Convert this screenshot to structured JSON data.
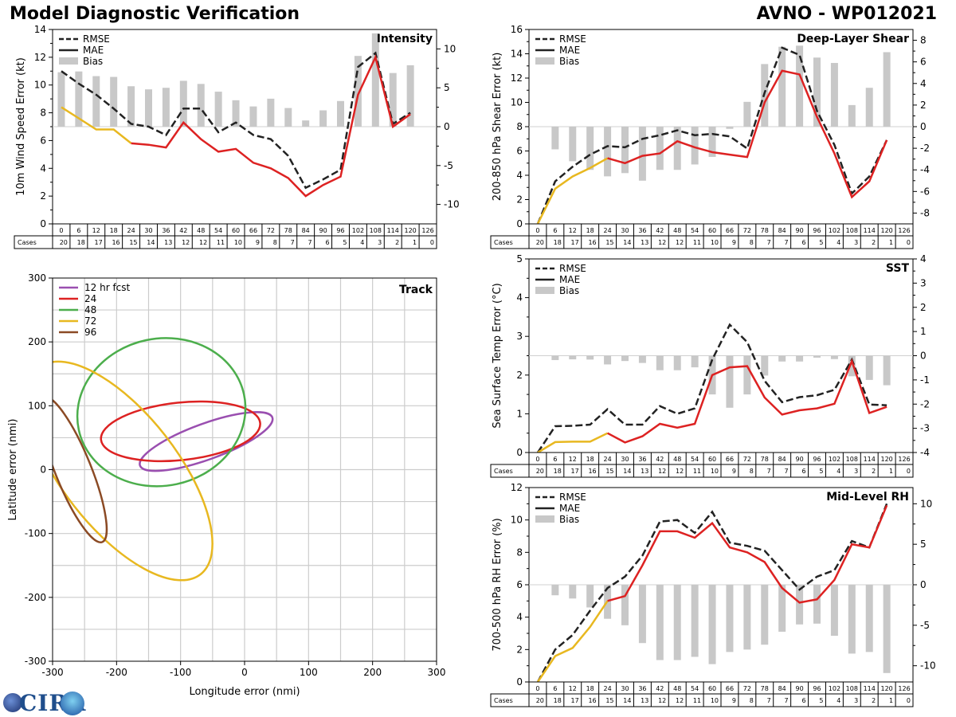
{
  "header": {
    "title": "Model Diagnostic Verification",
    "model": "AVNO - WP012021"
  },
  "logo": {
    "text": "CIRA"
  },
  "colors": {
    "rmse": "#222222",
    "mae_early": "#e8b820",
    "mae_late": "#dd2222",
    "bias": "#c8c8c8",
    "grid": "#cccccc",
    "zero": "#d0d0d0",
    "track": [
      "#9a4fb0",
      "#dd2222",
      "#4cae4c",
      "#e8b820",
      "#8b4a24"
    ]
  },
  "chart_data": [
    {
      "id": "intensity",
      "type": "line",
      "title": "Intensity",
      "ylabel": "10m Wind Speed Error (kt)",
      "x": [
        0,
        6,
        12,
        18,
        24,
        30,
        36,
        42,
        48,
        54,
        60,
        66,
        72,
        78,
        84,
        90,
        96,
        102,
        108,
        114,
        120,
        126
      ],
      "cases_label": "Cases",
      "cases": [
        20,
        18,
        17,
        16,
        15,
        14,
        13,
        12,
        12,
        11,
        10,
        9,
        8,
        7,
        7,
        6,
        5,
        4,
        3,
        2,
        1,
        0
      ],
      "ylim": [
        0,
        14
      ],
      "yticks": [
        0,
        2,
        4,
        6,
        8,
        10,
        12,
        14
      ],
      "y2lim": [
        -12.5,
        12.5
      ],
      "y2ticks": [
        -10,
        -5,
        0,
        5,
        10
      ],
      "legend": [
        "RMSE",
        "MAE",
        "Bias"
      ],
      "rmse": [
        11.0,
        10.1,
        9.3,
        8.3,
        7.2,
        7.0,
        6.4,
        8.3,
        8.3,
        6.6,
        7.3,
        6.4,
        6.1,
        4.9,
        2.6,
        3.2,
        3.9,
        11.3,
        12.3,
        7.2,
        8.0,
        null
      ],
      "mae": [
        8.4,
        7.6,
        6.8,
        6.8,
        5.8,
        5.7,
        5.5,
        7.3,
        6.1,
        5.2,
        5.4,
        4.4,
        4.0,
        3.3,
        2.0,
        2.8,
        3.4,
        9.3,
        12.0,
        7.0,
        7.9,
        null
      ],
      "mae_early_until": 24,
      "bias": [
        7.0,
        7.1,
        6.5,
        6.4,
        5.2,
        4.8,
        5.0,
        5.9,
        5.5,
        4.5,
        3.4,
        2.6,
        3.6,
        2.4,
        0.8,
        2.1,
        3.3,
        9.1,
        12.0,
        6.9,
        7.9,
        null
      ]
    },
    {
      "id": "shear",
      "type": "line",
      "title": "Deep-Layer Shear",
      "ylabel": "200-850 hPa Shear Error (kt)",
      "x": [
        0,
        6,
        12,
        18,
        24,
        30,
        36,
        42,
        48,
        54,
        60,
        66,
        72,
        78,
        84,
        90,
        96,
        102,
        108,
        114,
        120,
        126
      ],
      "cases_label": "Cases",
      "cases": [
        20,
        18,
        17,
        16,
        15,
        14,
        13,
        12,
        12,
        11,
        10,
        9,
        8,
        7,
        7,
        6,
        5,
        4,
        3,
        2,
        1,
        0
      ],
      "ylim": [
        0,
        16
      ],
      "yticks": [
        0,
        2,
        4,
        6,
        8,
        10,
        12,
        14,
        16
      ],
      "y2lim": [
        -9,
        9
      ],
      "y2ticks": [
        -8,
        -6,
        -4,
        -2,
        0,
        2,
        4,
        6,
        8
      ],
      "legend": [
        "RMSE",
        "MAE",
        "Bias"
      ],
      "rmse": [
        0.0,
        3.5,
        4.7,
        5.7,
        6.4,
        6.3,
        7.0,
        7.3,
        7.7,
        7.3,
        7.4,
        7.2,
        6.2,
        10.8,
        14.5,
        13.9,
        9.3,
        6.5,
        2.5,
        3.9,
        6.9,
        null
      ],
      "mae": [
        0.0,
        2.9,
        3.9,
        4.6,
        5.4,
        5.0,
        5.6,
        5.8,
        6.8,
        6.3,
        5.9,
        5.7,
        5.5,
        10.0,
        12.6,
        12.3,
        8.8,
        5.8,
        2.2,
        3.5,
        6.9,
        null
      ],
      "mae_early_until": 24,
      "bias": [
        0.0,
        -2.1,
        -3.2,
        -4.0,
        -4.6,
        -4.3,
        -5.0,
        -4.0,
        -4.0,
        -3.5,
        -2.8,
        -0.2,
        2.3,
        5.8,
        7.4,
        7.5,
        6.4,
        5.9,
        2.0,
        3.6,
        6.9,
        null
      ]
    },
    {
      "id": "sst",
      "type": "line",
      "title": "SST",
      "ylabel": "Sea Surface Temp Error (°C)",
      "x": [
        0,
        6,
        12,
        18,
        24,
        30,
        36,
        42,
        48,
        54,
        60,
        66,
        72,
        78,
        84,
        90,
        96,
        102,
        108,
        114,
        120,
        126
      ],
      "cases_label": "Cases",
      "cases": [
        20,
        18,
        17,
        16,
        15,
        14,
        13,
        12,
        12,
        11,
        10,
        9,
        8,
        7,
        7,
        6,
        5,
        4,
        3,
        2,
        1,
        0
      ],
      "ylim": [
        0,
        5
      ],
      "yticks": [
        0,
        1,
        2,
        3,
        4,
        5
      ],
      "y2lim": [
        -4,
        4
      ],
      "y2ticks": [
        -4,
        -3,
        -2,
        -1,
        0,
        1,
        2,
        3,
        4
      ],
      "legend": [
        "RMSE",
        "MAE",
        "Bias"
      ],
      "rmse": [
        0.0,
        0.68,
        0.69,
        0.72,
        1.12,
        0.72,
        0.72,
        1.2,
        1.0,
        1.14,
        2.4,
        3.3,
        2.85,
        1.85,
        1.3,
        1.43,
        1.48,
        1.62,
        2.4,
        1.24,
        1.22,
        null
      ],
      "mae": [
        0.0,
        0.27,
        0.28,
        0.28,
        0.5,
        0.26,
        0.42,
        0.74,
        0.64,
        0.74,
        2.0,
        2.2,
        2.23,
        1.42,
        0.98,
        1.09,
        1.14,
        1.26,
        2.36,
        1.02,
        1.18,
        null
      ],
      "mae_early_until": 24,
      "bias": [
        0.0,
        -0.18,
        -0.15,
        -0.16,
        -0.36,
        -0.22,
        -0.3,
        -0.6,
        -0.6,
        -0.48,
        -1.6,
        -2.15,
        -1.6,
        -0.82,
        -0.24,
        -0.24,
        -0.08,
        -0.14,
        -0.85,
        -1.0,
        -1.22,
        null
      ]
    },
    {
      "id": "rh",
      "type": "line",
      "title": "Mid-Level RH",
      "ylabel": "700-500 hPa RH Error (%)",
      "x": [
        0,
        6,
        12,
        18,
        24,
        30,
        36,
        42,
        48,
        54,
        60,
        66,
        72,
        78,
        84,
        90,
        96,
        102,
        108,
        114,
        120,
        126
      ],
      "cases_label": "Cases",
      "cases": [
        20,
        18,
        17,
        16,
        15,
        14,
        13,
        12,
        12,
        11,
        10,
        9,
        8,
        7,
        7,
        6,
        5,
        4,
        3,
        2,
        1,
        0
      ],
      "ylim": [
        0,
        12
      ],
      "yticks": [
        0,
        2,
        4,
        6,
        8,
        10,
        12
      ],
      "y2lim": [
        -12,
        12
      ],
      "y2ticks": [
        -10,
        -5,
        0,
        5,
        10
      ],
      "legend": [
        "RMSE",
        "MAE",
        "Bias"
      ],
      "rmse": [
        0.0,
        2.0,
        2.9,
        4.4,
        5.8,
        6.5,
        7.8,
        9.9,
        10.0,
        9.2,
        10.5,
        8.6,
        8.4,
        8.1,
        6.9,
        5.7,
        6.5,
        6.9,
        8.7,
        8.3,
        11.0,
        null
      ],
      "mae": [
        0.0,
        1.6,
        2.1,
        3.4,
        5.0,
        5.3,
        7.2,
        9.3,
        9.3,
        8.9,
        9.8,
        8.3,
        8.0,
        7.4,
        5.8,
        4.9,
        5.1,
        6.3,
        8.5,
        8.3,
        10.9,
        null
      ],
      "mae_early_until": 24,
      "bias": [
        0.0,
        -1.3,
        -1.7,
        -2.8,
        -4.2,
        -5.0,
        -7.2,
        -9.3,
        -9.3,
        -8.9,
        -9.8,
        -8.3,
        -8.0,
        -7.4,
        -5.8,
        -4.9,
        -4.8,
        -6.3,
        -8.5,
        -8.3,
        -10.9,
        null
      ]
    },
    {
      "id": "track",
      "type": "ellipse",
      "title": "Track",
      "xlabel": "Longitude error (nmi)",
      "ylabel": "Latitude error (nmi)",
      "xlim": [
        -300,
        300
      ],
      "ylim": [
        -300,
        300
      ],
      "xticks": [
        -300,
        -200,
        -100,
        0,
        100,
        200,
        300
      ],
      "yticks": [
        -300,
        -200,
        -100,
        0,
        100,
        200,
        300
      ],
      "legend": [
        "12 hr fcst",
        "24",
        "48",
        "72",
        "96"
      ],
      "ellipses": [
        {
          "name": "12 hr fcst",
          "cx": -60,
          "cy": 44,
          "a": 110,
          "b": 28,
          "angle": -20
        },
        {
          "name": "24",
          "cx": -100,
          "cy": 60,
          "a": 125,
          "b": 45,
          "angle": -6
        },
        {
          "name": "48",
          "cx": -130,
          "cy": 90,
          "a": 132,
          "b": 115,
          "angle": -12
        },
        {
          "name": "72",
          "cx": -195,
          "cy": -2,
          "a": 205,
          "b": 90,
          "angle": 52
        },
        {
          "name": "96",
          "cx": -268,
          "cy": 0,
          "a": 122,
          "b": 28,
          "angle": 68
        }
      ]
    }
  ]
}
